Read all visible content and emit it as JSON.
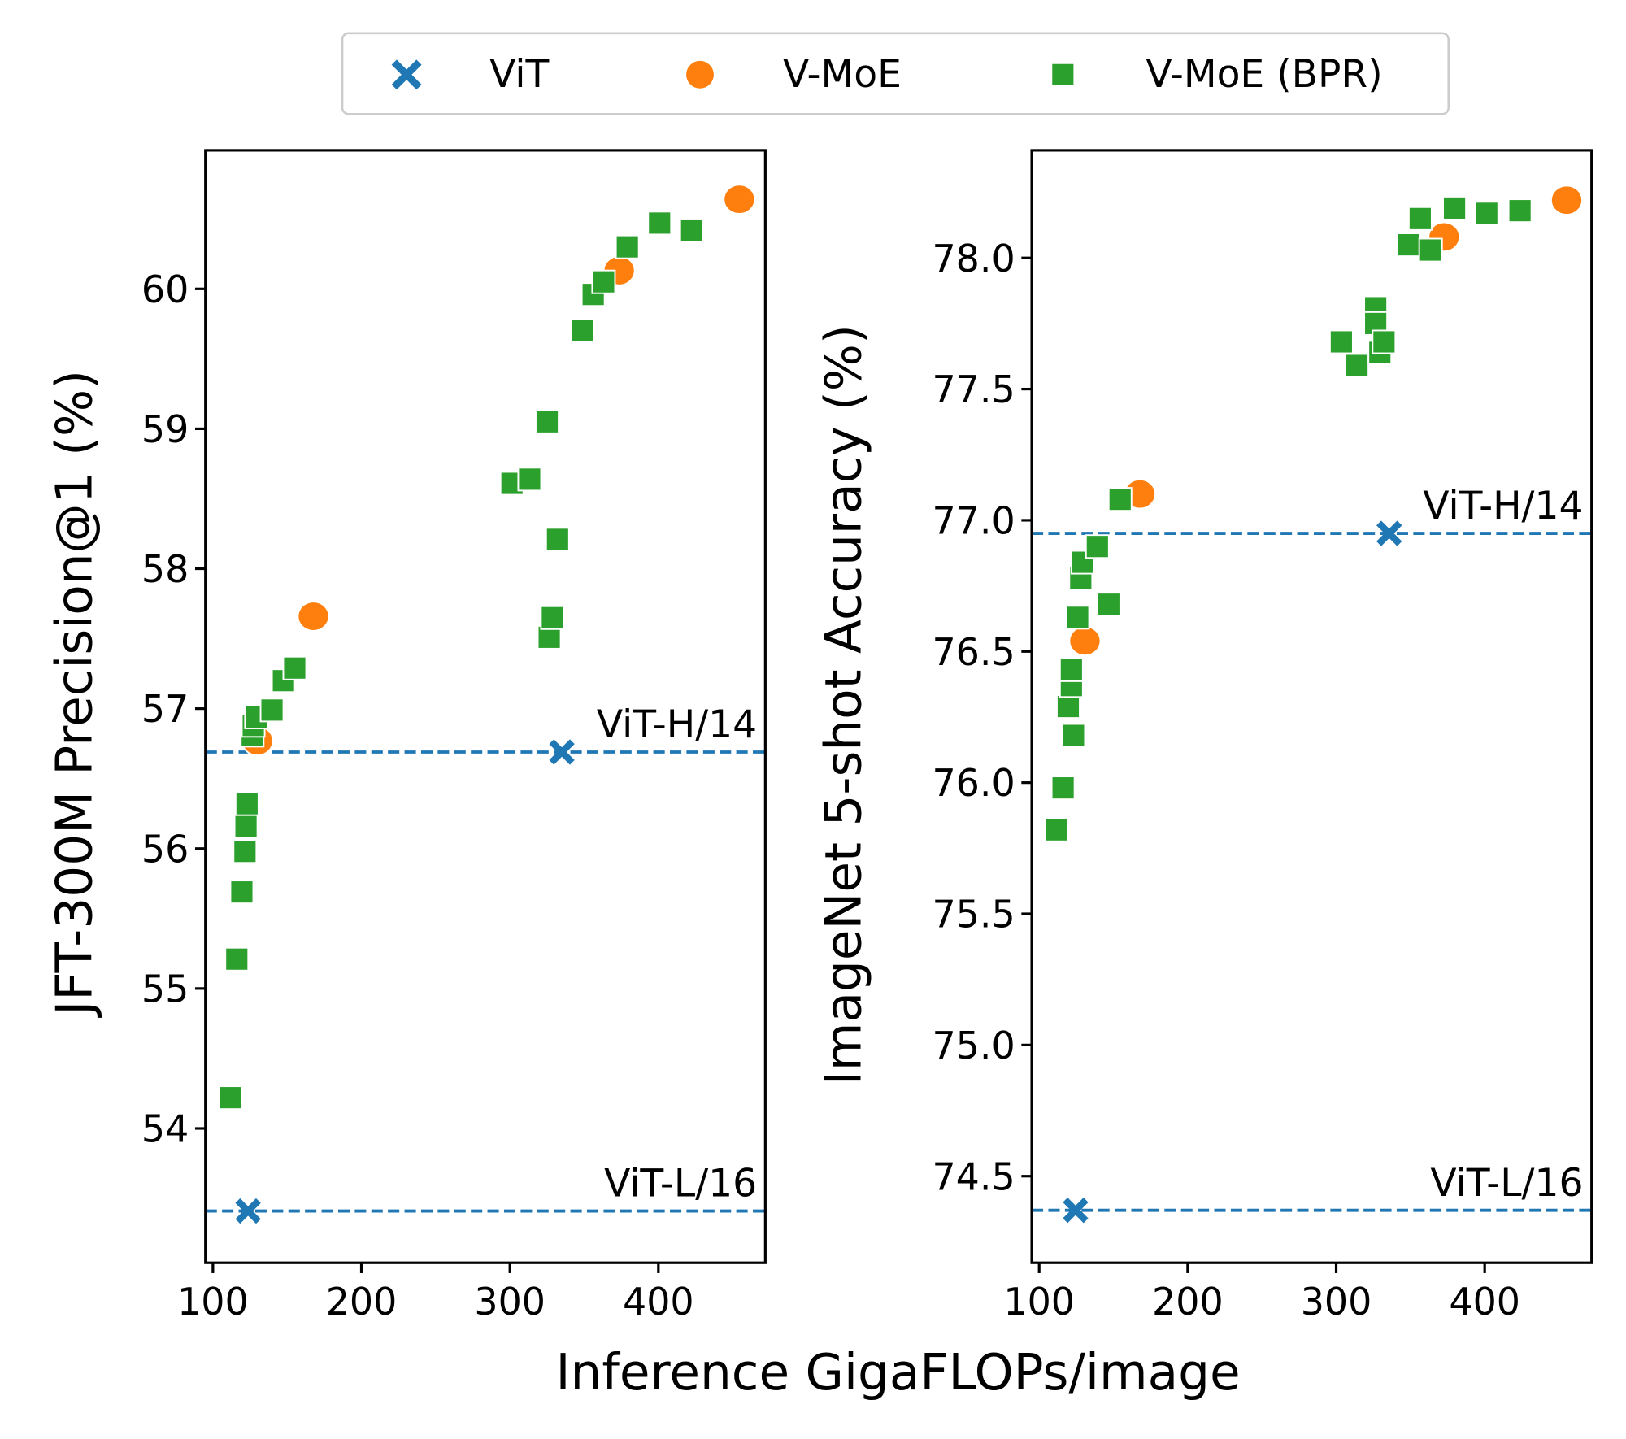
{
  "colors": {
    "vit": "#1f77b4",
    "vmoe": "#ff7f0e",
    "bpr": "#2ca02c"
  },
  "legend": {
    "placement": "top-center",
    "entries": [
      {
        "label": "ViT",
        "marker": "x-marker"
      },
      {
        "label": "V-MoE",
        "marker": "circle-marker"
      },
      {
        "label": "V-MoE (BPR)",
        "marker": "square-marker"
      }
    ]
  },
  "shared_xlabel": "Inference GigaFLOPs/image",
  "chart_data": [
    {
      "type": "scatter",
      "ylabel": "JFT-300M Precision@1 (%)",
      "xlabel": "Inference GigaFLOPs/image",
      "xlim": [
        95,
        472
      ],
      "ylim": [
        53.04,
        60.99
      ],
      "xticks": [
        100,
        200,
        300,
        400
      ],
      "yticks": [
        54,
        55,
        56,
        57,
        58,
        59,
        60
      ],
      "ytick_labels": [
        "54",
        "55",
        "56",
        "57",
        "58",
        "59",
        "60"
      ],
      "grid": false,
      "reference_lines": [
        {
          "label": "ViT-H/14",
          "y": 56.69
        },
        {
          "label": "ViT-L/16",
          "y": 53.41
        }
      ],
      "series": [
        {
          "name": "ViT",
          "points": [
            [
              123.7,
              53.41
            ],
            [
              335,
              56.69
            ]
          ]
        },
        {
          "name": "V-MoE",
          "points": [
            [
              130,
              56.77
            ],
            [
              167.7,
              57.66
            ],
            [
              373.6,
              60.13
            ],
            [
              454.5,
              60.64
            ]
          ]
        },
        {
          "name": "V-MoE (BPR)",
          "points": [
            [
              111.9,
              54.22
            ],
            [
              116.1,
              55.21
            ],
            [
              119.5,
              55.69
            ],
            [
              121.6,
              55.98
            ],
            [
              122.3,
              56.16
            ],
            [
              123.0,
              56.32
            ],
            [
              126.5,
              56.81
            ],
            [
              127.2,
              56.88
            ],
            [
              129.3,
              56.94
            ],
            [
              139.8,
              56.99
            ],
            [
              147.5,
              57.2
            ],
            [
              155.1,
              57.29
            ],
            [
              301.4,
              58.61
            ],
            [
              313.3,
              58.64
            ],
            [
              325.1,
              59.05
            ],
            [
              326.5,
              57.51
            ],
            [
              328.6,
              57.65
            ],
            [
              332.1,
              58.21
            ],
            [
              349.1,
              59.7
            ],
            [
              356.1,
              59.96
            ],
            [
              363.1,
              60.05
            ],
            [
              379.1,
              60.3
            ],
            [
              400.8,
              60.47
            ],
            [
              422.4,
              60.42
            ]
          ]
        }
      ]
    },
    {
      "type": "scatter",
      "ylabel": "ImageNet 5-shot Accuracy (%)",
      "xlabel": "Inference GigaFLOPs/image",
      "xlim": [
        95,
        472
      ],
      "ylim": [
        74.17,
        78.41
      ],
      "xticks": [
        100,
        200,
        300,
        400
      ],
      "yticks": [
        74.5,
        75.0,
        75.5,
        76.0,
        76.5,
        77.0,
        77.5,
        78.0
      ],
      "ytick_labels": [
        "74.5",
        "75.0",
        "75.5",
        "76.0",
        "76.5",
        "77.0",
        "77.5",
        "78.0"
      ],
      "grid": false,
      "reference_lines": [
        {
          "label": "ViT-H/14",
          "y": 76.95
        },
        {
          "label": "ViT-L/16",
          "y": 74.37
        }
      ],
      "series": [
        {
          "name": "ViT",
          "points": [
            [
              124.5,
              74.37
            ],
            [
              335.7,
              76.95
            ]
          ]
        },
        {
          "name": "V-MoE",
          "points": [
            [
              130.8,
              76.54
            ],
            [
              167.8,
              77.1
            ],
            [
              372.7,
              78.08
            ],
            [
              455.2,
              78.22
            ]
          ]
        },
        {
          "name": "V-MoE (BPR)",
          "points": [
            [
              111.9,
              75.82
            ],
            [
              116.1,
              75.98
            ],
            [
              123.1,
              76.18
            ],
            [
              119.6,
              76.29
            ],
            [
              121.7,
              76.37
            ],
            [
              121.7,
              76.43
            ],
            [
              125.9,
              76.63
            ],
            [
              128.0,
              76.78
            ],
            [
              129.4,
              76.84
            ],
            [
              139.2,
              76.9
            ],
            [
              146.9,
              76.68
            ],
            [
              154.5,
              77.08
            ],
            [
              303.5,
              77.68
            ],
            [
              314.0,
              77.59
            ],
            [
              329.4,
              77.64
            ],
            [
              326.6,
              77.81
            ],
            [
              326.6,
              77.75
            ],
            [
              332.2,
              77.68
            ],
            [
              348.9,
              78.05
            ],
            [
              356.6,
              78.15
            ],
            [
              363.6,
              78.03
            ],
            [
              379.7,
              78.19
            ],
            [
              401.4,
              78.17
            ],
            [
              423.8,
              78.18
            ]
          ]
        }
      ]
    }
  ]
}
